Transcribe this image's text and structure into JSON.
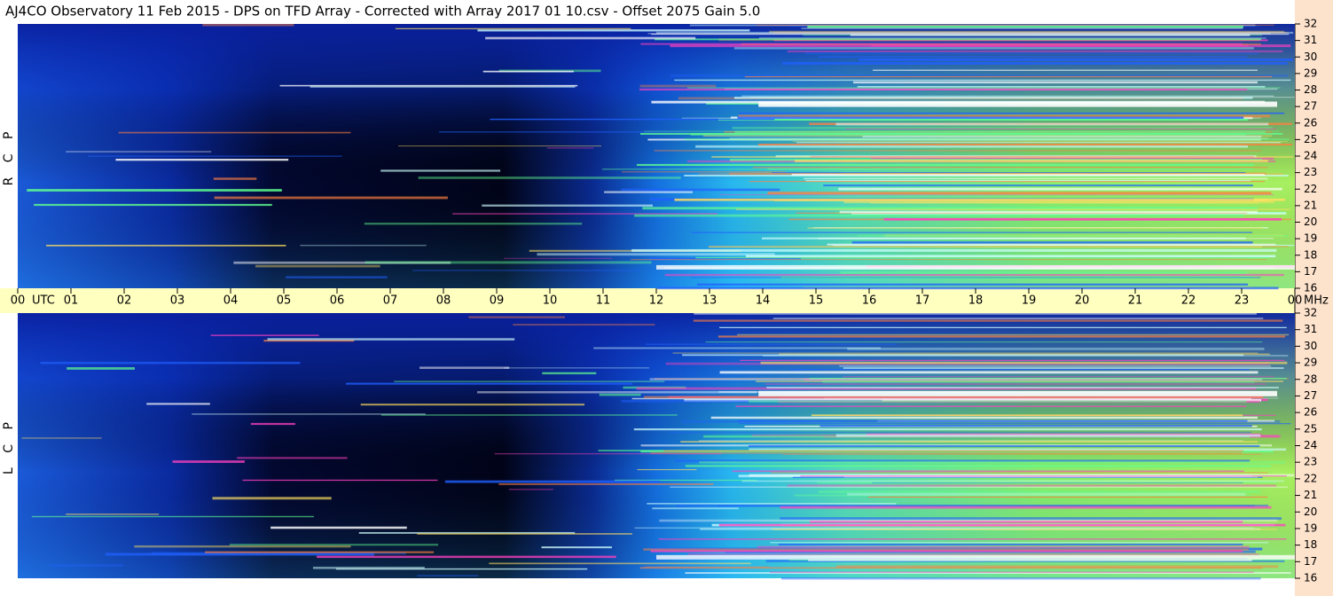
{
  "chart_data": {
    "type": "spectrogram",
    "title": "AJ4CO Observatory  11 Feb 2015  -  DPS on TFD Array  -  Corrected with Array 2017 01 10.csv  -  Offset 2075  Gain 5.0",
    "x_label": "UTC",
    "y_label": "MHz",
    "xlim": [
      0,
      24
    ],
    "xticks": [
      {
        "value": 0,
        "label": "00"
      },
      {
        "value": 1,
        "label": "01"
      },
      {
        "value": 2,
        "label": "02"
      },
      {
        "value": 3,
        "label": "03"
      },
      {
        "value": 4,
        "label": "04"
      },
      {
        "value": 5,
        "label": "05"
      },
      {
        "value": 6,
        "label": "06"
      },
      {
        "value": 7,
        "label": "07"
      },
      {
        "value": 8,
        "label": "08"
      },
      {
        "value": 9,
        "label": "09"
      },
      {
        "value": 10,
        "label": "10"
      },
      {
        "value": 11,
        "label": "11"
      },
      {
        "value": 12,
        "label": "12"
      },
      {
        "value": 13,
        "label": "13"
      },
      {
        "value": 14,
        "label": "14"
      },
      {
        "value": 15,
        "label": "15"
      },
      {
        "value": 16,
        "label": "16"
      },
      {
        "value": 17,
        "label": "17"
      },
      {
        "value": 18,
        "label": "18"
      },
      {
        "value": 19,
        "label": "19"
      },
      {
        "value": 20,
        "label": "20"
      },
      {
        "value": 21,
        "label": "21"
      },
      {
        "value": 22,
        "label": "22"
      },
      {
        "value": 23,
        "label": "23"
      },
      {
        "value": 24,
        "label": "00"
      }
    ],
    "ylim": [
      16,
      32
    ],
    "yticks": [
      16,
      17,
      18,
      19,
      20,
      21,
      22,
      23,
      24,
      25,
      26,
      27,
      28,
      29,
      30,
      31,
      32
    ],
    "panels": [
      {
        "label": "R C P"
      },
      {
        "label": "L C P"
      }
    ]
  }
}
